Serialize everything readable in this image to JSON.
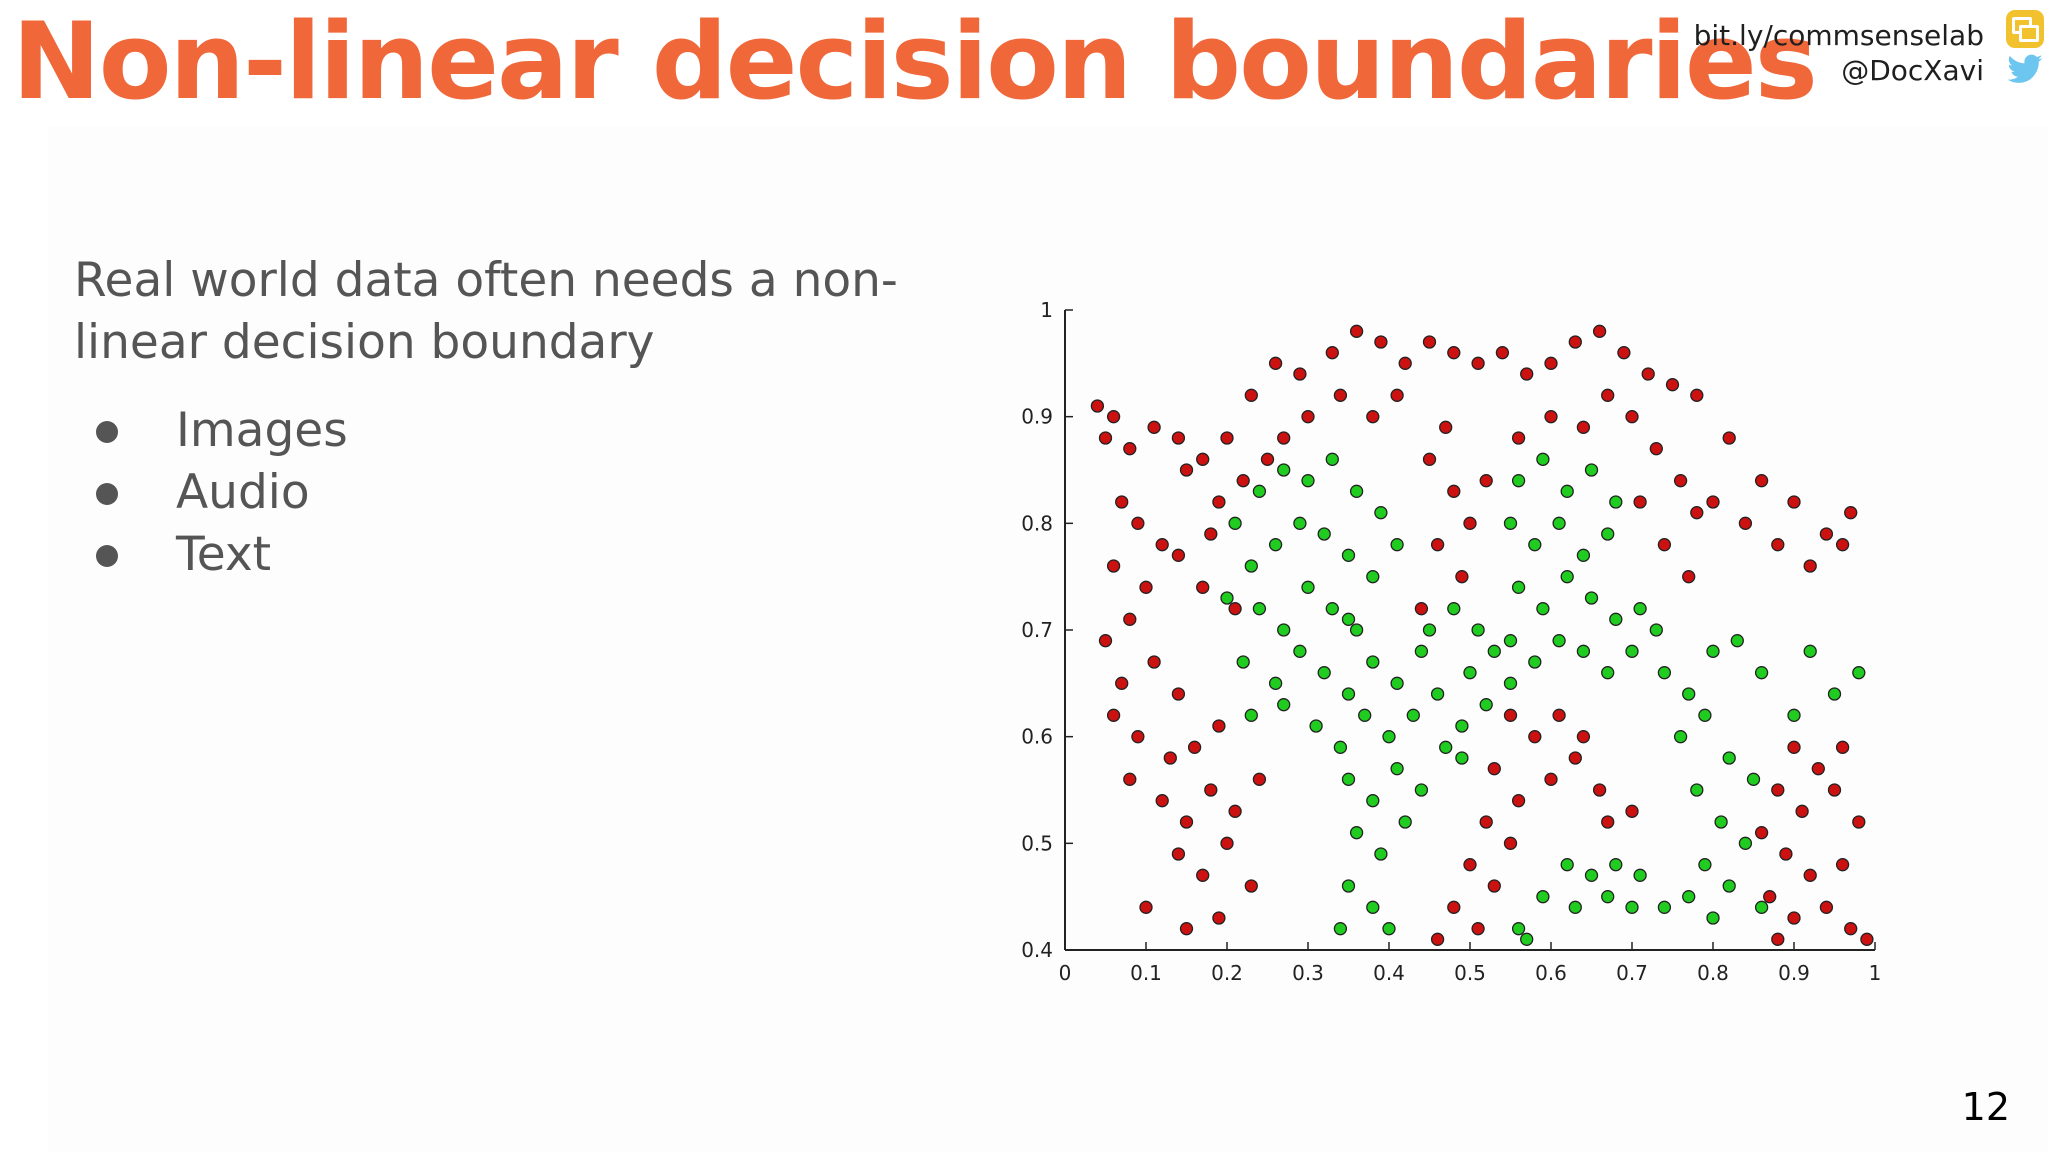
{
  "slide": {
    "title": "Non-linear decision boundaries",
    "handle_link": "bit.ly/commsenselab",
    "handle_twitter": "@DocXavi",
    "body_text": "Real world data often needs a non-linear decision boundary",
    "bullets": [
      "Images",
      "Audio",
      "Text"
    ],
    "page_number": "12",
    "accent_color": "#f0673a",
    "icons": [
      "google-slides-icon",
      "twitter-bird-icon"
    ]
  },
  "chart_data": {
    "type": "scatter",
    "title": "",
    "xlabel": "",
    "ylabel": "",
    "xlim": [
      0,
      1
    ],
    "ylim": [
      0.4,
      1
    ],
    "grid": false,
    "legend": "none",
    "x_ticks": [
      "0",
      "0.1",
      "0.2",
      "0.3",
      "0.4",
      "0.5",
      "0.6",
      "0.7",
      "0.8",
      "0.9",
      "1"
    ],
    "y_ticks": [
      "0.4",
      "0.5",
      "0.6",
      "0.7",
      "0.8",
      "0.9",
      "1"
    ],
    "series": [
      {
        "color": "#cc1111",
        "points": [
          [
            0.04,
            0.91
          ],
          [
            0.06,
            0.9
          ],
          [
            0.05,
            0.88
          ],
          [
            0.08,
            0.87
          ],
          [
            0.11,
            0.89
          ],
          [
            0.14,
            0.88
          ],
          [
            0.17,
            0.86
          ],
          [
            0.2,
            0.88
          ],
          [
            0.23,
            0.92
          ],
          [
            0.26,
            0.95
          ],
          [
            0.29,
            0.94
          ],
          [
            0.33,
            0.96
          ],
          [
            0.36,
            0.98
          ],
          [
            0.39,
            0.97
          ],
          [
            0.42,
            0.95
          ],
          [
            0.45,
            0.97
          ],
          [
            0.48,
            0.96
          ],
          [
            0.51,
            0.95
          ],
          [
            0.54,
            0.96
          ],
          [
            0.57,
            0.94
          ],
          [
            0.6,
            0.95
          ],
          [
            0.63,
            0.97
          ],
          [
            0.66,
            0.98
          ],
          [
            0.69,
            0.96
          ],
          [
            0.72,
            0.94
          ],
          [
            0.75,
            0.93
          ],
          [
            0.78,
            0.92
          ],
          [
            0.82,
            0.88
          ],
          [
            0.86,
            0.84
          ],
          [
            0.9,
            0.82
          ],
          [
            0.94,
            0.79
          ],
          [
            0.97,
            0.81
          ],
          [
            0.07,
            0.82
          ],
          [
            0.09,
            0.8
          ],
          [
            0.12,
            0.78
          ],
          [
            0.06,
            0.76
          ],
          [
            0.1,
            0.74
          ],
          [
            0.08,
            0.71
          ],
          [
            0.05,
            0.69
          ],
          [
            0.11,
            0.67
          ],
          [
            0.07,
            0.65
          ],
          [
            0.14,
            0.64
          ],
          [
            0.06,
            0.62
          ],
          [
            0.09,
            0.6
          ],
          [
            0.13,
            0.58
          ],
          [
            0.16,
            0.59
          ],
          [
            0.19,
            0.61
          ],
          [
            0.08,
            0.56
          ],
          [
            0.12,
            0.54
          ],
          [
            0.15,
            0.52
          ],
          [
            0.18,
            0.55
          ],
          [
            0.21,
            0.53
          ],
          [
            0.24,
            0.56
          ],
          [
            0.14,
            0.49
          ],
          [
            0.17,
            0.47
          ],
          [
            0.2,
            0.5
          ],
          [
            0.23,
            0.46
          ],
          [
            0.1,
            0.44
          ],
          [
            0.15,
            0.42
          ],
          [
            0.19,
            0.43
          ],
          [
            0.15,
            0.85
          ],
          [
            0.19,
            0.82
          ],
          [
            0.22,
            0.84
          ],
          [
            0.18,
            0.79
          ],
          [
            0.14,
            0.77
          ],
          [
            0.17,
            0.74
          ],
          [
            0.21,
            0.72
          ],
          [
            0.45,
            0.86
          ],
          [
            0.48,
            0.83
          ],
          [
            0.5,
            0.8
          ],
          [
            0.46,
            0.78
          ],
          [
            0.49,
            0.75
          ],
          [
            0.52,
            0.84
          ],
          [
            0.44,
            0.72
          ],
          [
            0.47,
            0.89
          ],
          [
            0.73,
            0.87
          ],
          [
            0.76,
            0.84
          ],
          [
            0.78,
            0.81
          ],
          [
            0.74,
            0.78
          ],
          [
            0.77,
            0.75
          ],
          [
            0.8,
            0.82
          ],
          [
            0.71,
            0.82
          ],
          [
            0.84,
            0.8
          ],
          [
            0.88,
            0.78
          ],
          [
            0.92,
            0.76
          ],
          [
            0.96,
            0.78
          ],
          [
            0.55,
            0.62
          ],
          [
            0.58,
            0.6
          ],
          [
            0.61,
            0.62
          ],
          [
            0.64,
            0.6
          ],
          [
            0.53,
            0.57
          ],
          [
            0.56,
            0.54
          ],
          [
            0.6,
            0.56
          ],
          [
            0.63,
            0.58
          ],
          [
            0.66,
            0.55
          ],
          [
            0.52,
            0.52
          ],
          [
            0.55,
            0.5
          ],
          [
            0.67,
            0.52
          ],
          [
            0.7,
            0.53
          ],
          [
            0.5,
            0.48
          ],
          [
            0.53,
            0.46
          ],
          [
            0.48,
            0.44
          ],
          [
            0.51,
            0.42
          ],
          [
            0.46,
            0.41
          ],
          [
            0.9,
            0.59
          ],
          [
            0.93,
            0.57
          ],
          [
            0.96,
            0.59
          ],
          [
            0.88,
            0.55
          ],
          [
            0.91,
            0.53
          ],
          [
            0.95,
            0.55
          ],
          [
            0.98,
            0.52
          ],
          [
            0.86,
            0.51
          ],
          [
            0.89,
            0.49
          ],
          [
            0.92,
            0.47
          ],
          [
            0.96,
            0.48
          ],
          [
            0.87,
            0.45
          ],
          [
            0.9,
            0.43
          ],
          [
            0.94,
            0.44
          ],
          [
            0.97,
            0.42
          ],
          [
            0.88,
            0.41
          ],
          [
            0.99,
            0.41
          ],
          [
            0.3,
            0.9
          ],
          [
            0.34,
            0.92
          ],
          [
            0.38,
            0.9
          ],
          [
            0.41,
            0.92
          ],
          [
            0.27,
            0.88
          ],
          [
            0.25,
            0.86
          ],
          [
            0.56,
            0.88
          ],
          [
            0.6,
            0.9
          ],
          [
            0.64,
            0.89
          ],
          [
            0.67,
            0.92
          ],
          [
            0.7,
            0.9
          ]
        ]
      },
      {
        "color": "#1fcc1f",
        "points": [
          [
            0.21,
            0.8
          ],
          [
            0.24,
            0.83
          ],
          [
            0.27,
            0.85
          ],
          [
            0.3,
            0.84
          ],
          [
            0.33,
            0.86
          ],
          [
            0.36,
            0.83
          ],
          [
            0.39,
            0.81
          ],
          [
            0.41,
            0.78
          ],
          [
            0.23,
            0.76
          ],
          [
            0.26,
            0.78
          ],
          [
            0.29,
            0.8
          ],
          [
            0.32,
            0.79
          ],
          [
            0.35,
            0.77
          ],
          [
            0.38,
            0.75
          ],
          [
            0.2,
            0.73
          ],
          [
            0.24,
            0.72
          ],
          [
            0.27,
            0.7
          ],
          [
            0.3,
            0.74
          ],
          [
            0.33,
            0.72
          ],
          [
            0.36,
            0.7
          ],
          [
            0.22,
            0.67
          ],
          [
            0.26,
            0.65
          ],
          [
            0.29,
            0.68
          ],
          [
            0.32,
            0.66
          ],
          [
            0.35,
            0.64
          ],
          [
            0.38,
            0.67
          ],
          [
            0.41,
            0.65
          ],
          [
            0.44,
            0.68
          ],
          [
            0.23,
            0.62
          ],
          [
            0.27,
            0.63
          ],
          [
            0.31,
            0.61
          ],
          [
            0.34,
            0.59
          ],
          [
            0.37,
            0.62
          ],
          [
            0.4,
            0.6
          ],
          [
            0.43,
            0.62
          ],
          [
            0.46,
            0.64
          ],
          [
            0.49,
            0.61
          ],
          [
            0.35,
            0.56
          ],
          [
            0.38,
            0.54
          ],
          [
            0.41,
            0.57
          ],
          [
            0.44,
            0.55
          ],
          [
            0.47,
            0.59
          ],
          [
            0.5,
            0.66
          ],
          [
            0.53,
            0.68
          ],
          [
            0.36,
            0.51
          ],
          [
            0.39,
            0.49
          ],
          [
            0.42,
            0.52
          ],
          [
            0.35,
            0.46
          ],
          [
            0.38,
            0.44
          ],
          [
            0.34,
            0.42
          ],
          [
            0.4,
            0.42
          ],
          [
            0.56,
            0.84
          ],
          [
            0.59,
            0.86
          ],
          [
            0.62,
            0.83
          ],
          [
            0.65,
            0.85
          ],
          [
            0.68,
            0.82
          ],
          [
            0.55,
            0.8
          ],
          [
            0.58,
            0.78
          ],
          [
            0.61,
            0.8
          ],
          [
            0.64,
            0.77
          ],
          [
            0.67,
            0.79
          ],
          [
            0.56,
            0.74
          ],
          [
            0.59,
            0.72
          ],
          [
            0.62,
            0.75
          ],
          [
            0.65,
            0.73
          ],
          [
            0.68,
            0.71
          ],
          [
            0.71,
            0.72
          ],
          [
            0.55,
            0.69
          ],
          [
            0.58,
            0.67
          ],
          [
            0.61,
            0.69
          ],
          [
            0.64,
            0.68
          ],
          [
            0.67,
            0.66
          ],
          [
            0.7,
            0.68
          ],
          [
            0.73,
            0.7
          ],
          [
            0.74,
            0.66
          ],
          [
            0.77,
            0.64
          ],
          [
            0.8,
            0.68
          ],
          [
            0.83,
            0.69
          ],
          [
            0.86,
            0.66
          ],
          [
            0.76,
            0.6
          ],
          [
            0.79,
            0.62
          ],
          [
            0.82,
            0.58
          ],
          [
            0.85,
            0.56
          ],
          [
            0.78,
            0.55
          ],
          [
            0.81,
            0.52
          ],
          [
            0.84,
            0.5
          ],
          [
            0.79,
            0.48
          ],
          [
            0.82,
            0.46
          ],
          [
            0.86,
            0.44
          ],
          [
            0.92,
            0.68
          ],
          [
            0.95,
            0.64
          ],
          [
            0.98,
            0.66
          ],
          [
            0.9,
            0.62
          ],
          [
            0.62,
            0.48
          ],
          [
            0.65,
            0.47
          ],
          [
            0.68,
            0.48
          ],
          [
            0.71,
            0.47
          ],
          [
            0.59,
            0.45
          ],
          [
            0.63,
            0.44
          ],
          [
            0.67,
            0.45
          ],
          [
            0.7,
            0.44
          ],
          [
            0.74,
            0.44
          ],
          [
            0.77,
            0.45
          ],
          [
            0.8,
            0.43
          ],
          [
            0.56,
            0.42
          ],
          [
            0.57,
            0.41
          ],
          [
            0.35,
            0.71
          ],
          [
            0.45,
            0.7
          ],
          [
            0.48,
            0.72
          ],
          [
            0.51,
            0.7
          ],
          [
            0.52,
            0.63
          ],
          [
            0.55,
            0.65
          ],
          [
            0.49,
            0.58
          ]
        ]
      }
    ]
  }
}
